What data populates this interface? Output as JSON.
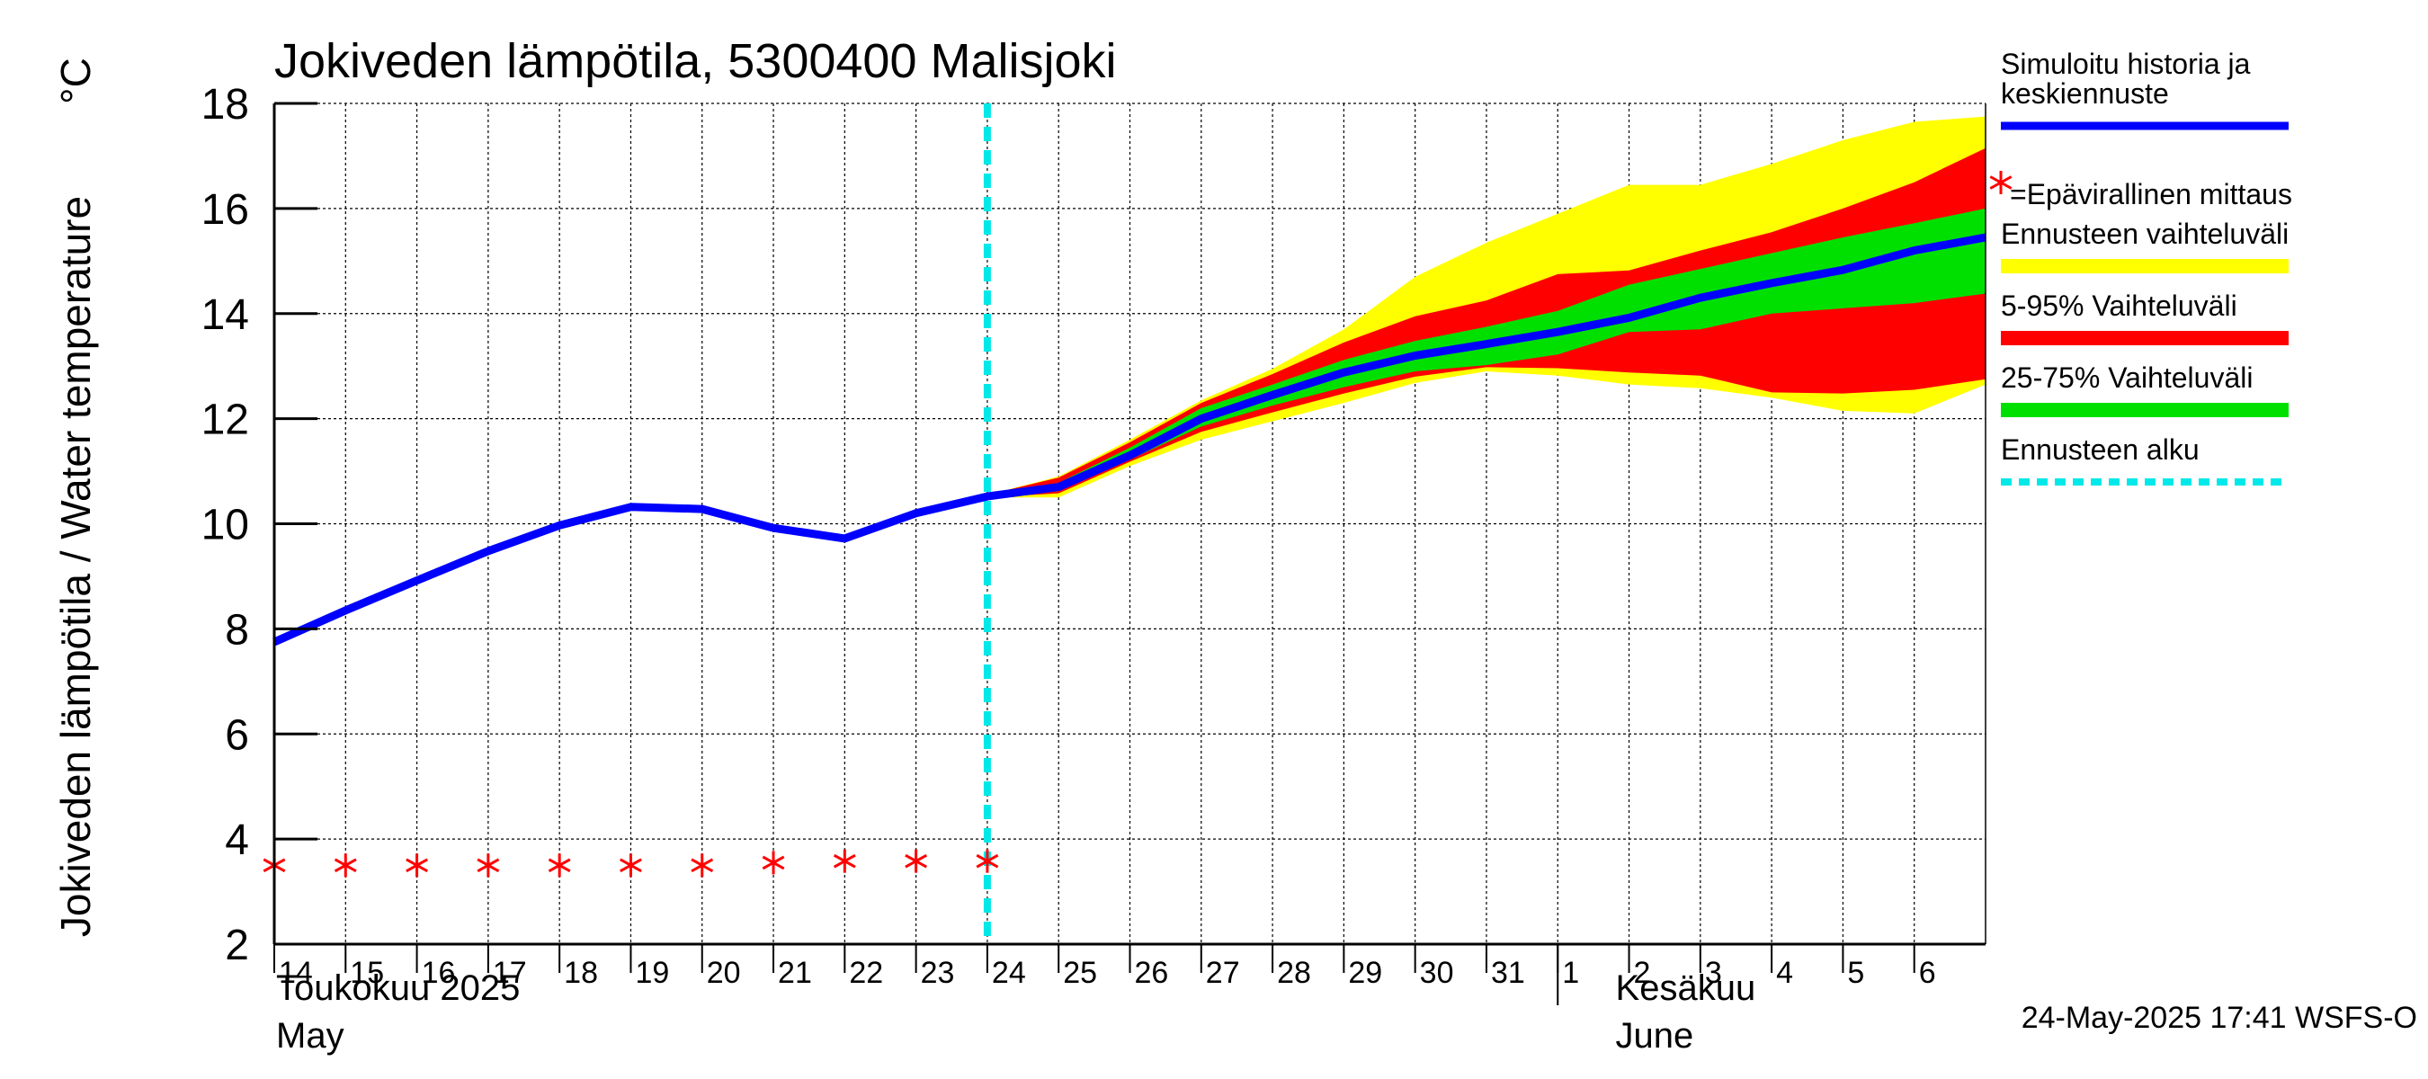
{
  "chart_data": {
    "type": "area",
    "title": "Jokiveden lämpötila, 5300400 Malisjoki",
    "ylabel": "Jokiveden lämpötila / Water temperature",
    "yunit": "°C",
    "ylim": [
      2,
      18
    ],
    "yticks": [
      2,
      4,
      6,
      8,
      10,
      12,
      14,
      16,
      18
    ],
    "xlim": [
      "2025-05-14",
      "2025-06-07"
    ],
    "x_tick_labels": [
      "14",
      "15",
      "16",
      "17",
      "18",
      "19",
      "20",
      "21",
      "22",
      "23",
      "24",
      "25",
      "26",
      "27",
      "28",
      "29",
      "30",
      "31",
      "1",
      "2",
      "3",
      "4",
      "5",
      "6"
    ],
    "month_labels": [
      {
        "fi": "Toukokuu  2025",
        "en": "May"
      },
      {
        "fi": "Kesäkuu",
        "en": "June"
      }
    ],
    "grid": true,
    "forecast_start": "2025-05-24",
    "timestamp": "24-May-2025 17:41 WSFS-O",
    "history": {
      "x": [
        "2025-05-14",
        "2025-05-15",
        "2025-05-16",
        "2025-05-17",
        "2025-05-18",
        "2025-05-19",
        "2025-05-20",
        "2025-05-21",
        "2025-05-22",
        "2025-05-23",
        "2025-05-24"
      ],
      "y": [
        7.75,
        8.35,
        8.92,
        9.48,
        9.97,
        10.32,
        10.28,
        9.92,
        9.72,
        10.2,
        10.52
      ]
    },
    "forecast_x": [
      "2025-05-24",
      "2025-05-25",
      "2025-05-26",
      "2025-05-27",
      "2025-05-28",
      "2025-05-29",
      "2025-05-30",
      "2025-05-31",
      "2025-06-01",
      "2025-06-02",
      "2025-06-03",
      "2025-06-04",
      "2025-06-05",
      "2025-06-06",
      "2025-06-07"
    ],
    "median": [
      10.52,
      10.7,
      11.3,
      12.0,
      12.45,
      12.88,
      13.2,
      13.42,
      13.65,
      13.92,
      14.3,
      14.58,
      14.83,
      15.2,
      15.45
    ],
    "range_full": {
      "upper": [
        10.55,
        10.9,
        11.6,
        12.35,
        12.95,
        13.7,
        14.7,
        15.35,
        15.9,
        16.45,
        16.45,
        16.85,
        17.3,
        17.65,
        17.75
      ],
      "lower": [
        10.5,
        10.5,
        11.1,
        11.6,
        11.95,
        12.3,
        12.68,
        12.9,
        12.82,
        12.65,
        12.58,
        12.4,
        12.15,
        12.1,
        12.65
      ]
    },
    "range_5_95": {
      "upper": [
        10.55,
        10.88,
        11.55,
        12.3,
        12.85,
        13.45,
        13.95,
        14.25,
        14.75,
        14.82,
        15.2,
        15.55,
        16.0,
        16.5,
        17.15
      ],
      "lower": [
        10.5,
        10.58,
        11.18,
        11.75,
        12.12,
        12.48,
        12.8,
        12.98,
        12.96,
        12.88,
        12.82,
        12.5,
        12.48,
        12.55,
        12.75
      ]
    },
    "range_25_75": {
      "upper": [
        10.54,
        10.78,
        11.45,
        12.2,
        12.65,
        13.12,
        13.48,
        13.75,
        14.05,
        14.55,
        14.85,
        15.15,
        15.45,
        15.72,
        16.0
      ],
      "lower": [
        10.51,
        10.62,
        11.22,
        11.85,
        12.25,
        12.6,
        12.9,
        13.02,
        13.22,
        13.65,
        13.7,
        14.0,
        14.1,
        14.2,
        14.38
      ]
    },
    "observations": {
      "x": [
        "2025-05-14",
        "2025-05-15",
        "2025-05-16",
        "2025-05-17",
        "2025-05-18",
        "2025-05-19",
        "2025-05-20",
        "2025-05-21",
        "2025-05-22",
        "2025-05-23",
        "2025-05-24"
      ],
      "y": [
        3.5,
        3.5,
        3.5,
        3.5,
        3.5,
        3.5,
        3.5,
        3.55,
        3.58,
        3.58,
        3.58
      ]
    },
    "legend": [
      {
        "label_lines": [
          "Simuloitu historia ja",
          "keskiennuste"
        ],
        "color": "#0000ff",
        "kind": "line"
      },
      {
        "label_lines": [
          "=Epävirallinen mittaus"
        ],
        "color": "#ff0000",
        "kind": "star"
      },
      {
        "label_lines": [
          "Ennusteen vaihteluväli"
        ],
        "color": "#ffff00",
        "kind": "band"
      },
      {
        "label_lines": [
          "5-95% Vaihteluväli"
        ],
        "color": "#ff0000",
        "kind": "band"
      },
      {
        "label_lines": [
          "25-75% Vaihteluväli"
        ],
        "color": "#00e000",
        "kind": "band"
      },
      {
        "label_lines": [
          "Ennusteen alku"
        ],
        "color": "#00e8e8",
        "kind": "dashed"
      }
    ],
    "colors": {
      "median": "#0000ff",
      "range_full": "#ffff00",
      "range_5_95": "#ff0000",
      "range_25_75": "#00e000",
      "forecast_start": "#00e8e8",
      "observations": "#ff0000"
    }
  }
}
